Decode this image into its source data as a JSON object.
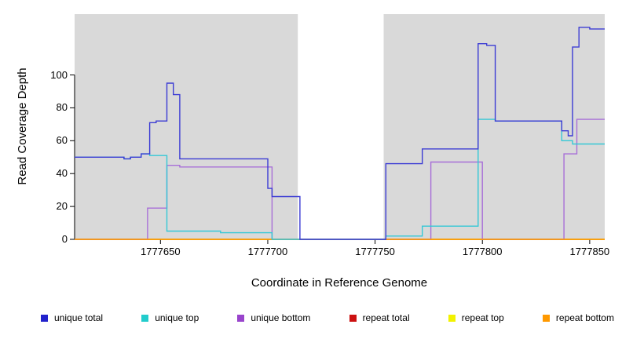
{
  "chart_data": {
    "type": "line",
    "subtype": "step",
    "title": "",
    "xlabel": "Coordinate in Reference Genome",
    "ylabel": "Read Coverage Depth",
    "xlim": [
      1777610,
      1777857
    ],
    "ylim": [
      0,
      137
    ],
    "x_ticks": [
      1777650,
      1777700,
      1777750,
      1777800,
      1777850
    ],
    "y_ticks": [
      0,
      20,
      40,
      60,
      80,
      100
    ],
    "grid": false,
    "legend_position": "bottom",
    "plot_bg_color": "#d9d9d9",
    "masked_region": {
      "start": 1777714,
      "end": 1777754,
      "color": "#ffffff"
    },
    "draw_order": [
      3,
      4,
      2,
      5,
      1,
      0
    ],
    "series": [
      {
        "name": "unique total",
        "color": "#3b3bd4",
        "points": [
          [
            1777610,
            50
          ],
          [
            1777633,
            49
          ],
          [
            1777636,
            50
          ],
          [
            1777641,
            52
          ],
          [
            1777645,
            71
          ],
          [
            1777648,
            72
          ],
          [
            1777653,
            95
          ],
          [
            1777656,
            88
          ],
          [
            1777659,
            49
          ],
          [
            1777700,
            31
          ],
          [
            1777702,
            26
          ],
          [
            1777715,
            0
          ],
          [
            1777755,
            46
          ],
          [
            1777772,
            55
          ],
          [
            1777798,
            119
          ],
          [
            1777802,
            118
          ],
          [
            1777806,
            72
          ],
          [
            1777837,
            66
          ],
          [
            1777840,
            63
          ],
          [
            1777842,
            117
          ],
          [
            1777845,
            129
          ],
          [
            1777850,
            128
          ]
        ]
      },
      {
        "name": "unique top",
        "color": "#35c8d6",
        "points": [
          [
            1777610,
            50
          ],
          [
            1777633,
            49
          ],
          [
            1777636,
            50
          ],
          [
            1777641,
            52
          ],
          [
            1777645,
            51
          ],
          [
            1777653,
            5
          ],
          [
            1777678,
            4
          ],
          [
            1777702,
            0
          ],
          [
            1777755,
            2
          ],
          [
            1777772,
            8
          ],
          [
            1777798,
            73
          ],
          [
            1777806,
            72
          ],
          [
            1777837,
            60
          ],
          [
            1777842,
            58
          ]
        ]
      },
      {
        "name": "unique bottom",
        "color": "#a86fd8",
        "points": [
          [
            1777610,
            0
          ],
          [
            1777644,
            19
          ],
          [
            1777653,
            45
          ],
          [
            1777659,
            44
          ],
          [
            1777702,
            0
          ],
          [
            1777776,
            47
          ],
          [
            1777800,
            0
          ],
          [
            1777838,
            52
          ],
          [
            1777844,
            73
          ]
        ]
      },
      {
        "name": "repeat total",
        "color": "#c00000",
        "points": [
          [
            1777610,
            0
          ]
        ]
      },
      {
        "name": "repeat top",
        "color": "#f2f200",
        "points": [
          [
            1777610,
            0
          ]
        ]
      },
      {
        "name": "repeat bottom",
        "color": "#ff9900",
        "points": [
          [
            1777610,
            0
          ]
        ]
      }
    ],
    "legend": [
      {
        "label": "unique total",
        "color": "#2222cc"
      },
      {
        "label": "unique top",
        "color": "#22cccc"
      },
      {
        "label": "unique bottom",
        "color": "#9944cc"
      },
      {
        "label": "repeat total",
        "color": "#cc1111"
      },
      {
        "label": "repeat top",
        "color": "#f2f200"
      },
      {
        "label": "repeat bottom",
        "color": "#ff9900"
      }
    ]
  }
}
